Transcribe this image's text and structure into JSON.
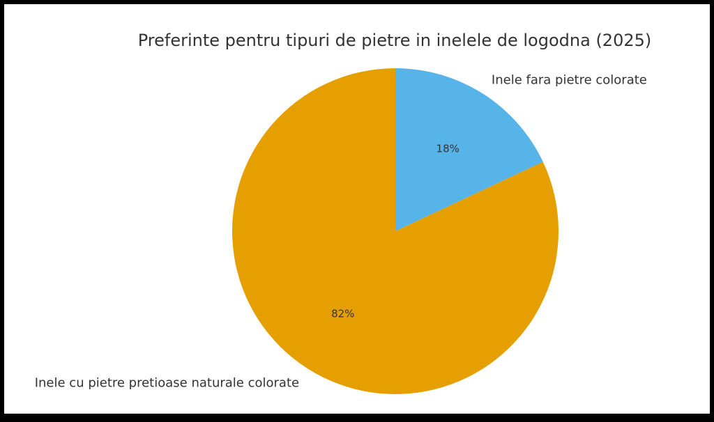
{
  "chart_data": {
    "type": "pie",
    "title": "Preferinte pentru tipuri de pietre in inelele de logodna (2025)",
    "start": "top",
    "direction": "clockwise",
    "slices": [
      {
        "label": "Inele fara pietre colorate",
        "value": 18,
        "pct_label": "18%",
        "color": "#56B4E9"
      },
      {
        "label": "Inele cu pietre pretioase naturale colorate",
        "value": 82,
        "pct_label": "82%",
        "color": "#E69F00"
      }
    ]
  }
}
